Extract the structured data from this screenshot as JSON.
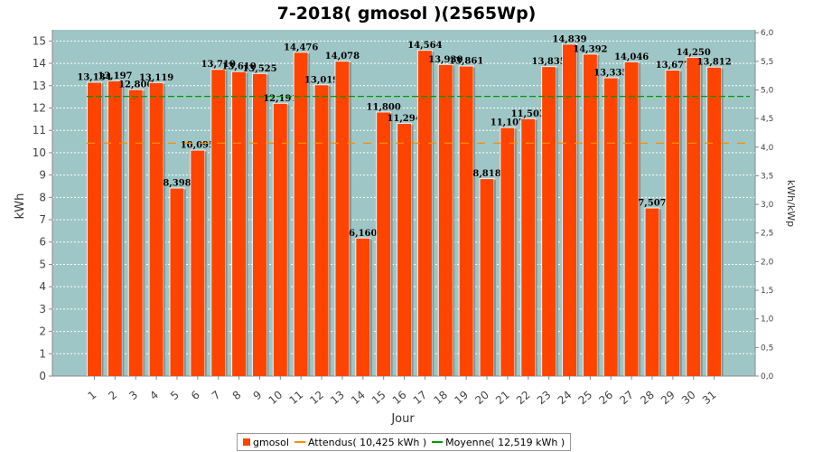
{
  "chart_data": {
    "type": "bar",
    "title": "7-2018( gmosol )(2565Wp)",
    "xlabel": "Jour",
    "ylabel": "kWh",
    "y2label": "kWh/kWp",
    "ylim": [
      0,
      15.5
    ],
    "yticks": [
      "0",
      "1",
      "2",
      "3",
      "4",
      "5",
      "6",
      "7",
      "8",
      "9",
      "10",
      "11",
      "12",
      "13",
      "14",
      "15"
    ],
    "y2lim": [
      0,
      6.05
    ],
    "y2ticks": [
      "0,0",
      "0,5",
      "1,0",
      "1,5",
      "2,0",
      "2,5",
      "3,0",
      "3,5",
      "4,0",
      "4,5",
      "5,0",
      "5,5",
      "6,0"
    ],
    "categories": [
      "1",
      "2",
      "3",
      "4",
      "5",
      "6",
      "7",
      "8",
      "9",
      "10",
      "11",
      "12",
      "13",
      "14",
      "15",
      "16",
      "17",
      "18",
      "19",
      "20",
      "21",
      "22",
      "23",
      "24",
      "25",
      "26",
      "27",
      "28",
      "29",
      "30",
      "31"
    ],
    "series": [
      {
        "name": "gmosol",
        "values": [
          13.134,
          13.197,
          12.806,
          13.119,
          8.398,
          10.095,
          13.71,
          13.61,
          13.525,
          12.191,
          14.476,
          13.019,
          14.078,
          6.16,
          11.8,
          11.294,
          14.564,
          13.93,
          13.861,
          8.818,
          11.107,
          11.503,
          13.835,
          14.839,
          14.392,
          13.335,
          14.046,
          7.507,
          13.677,
          14.25,
          13.812
        ],
        "labels": [
          "13,134",
          "13,197",
          "12,806",
          "13,119",
          "8,398",
          "10,095",
          "13,710",
          "13,610",
          "13,525",
          "12,191",
          "14,476",
          "13,019",
          "14,078",
          "6,160",
          "11,800",
          "11,294",
          "14,564",
          "13,930",
          "13,861",
          "8,818",
          "11,107",
          "11,503",
          "13,835",
          "14,839",
          "14,392",
          "13,335",
          "14,046",
          "7,507",
          "13,677",
          "14,250",
          "13,812"
        ],
        "color": "#ff4400"
      }
    ],
    "expected": {
      "name": "Attendus( 10,425 kWh )",
      "value": 10.425,
      "color": "#ff8c00"
    },
    "average": {
      "name": "Moyenne( 12,519 kWh )",
      "value": 12.519,
      "color": "#009900"
    },
    "plot_background": "#9fc6c6",
    "grid": true,
    "legend_position": "bottom"
  }
}
